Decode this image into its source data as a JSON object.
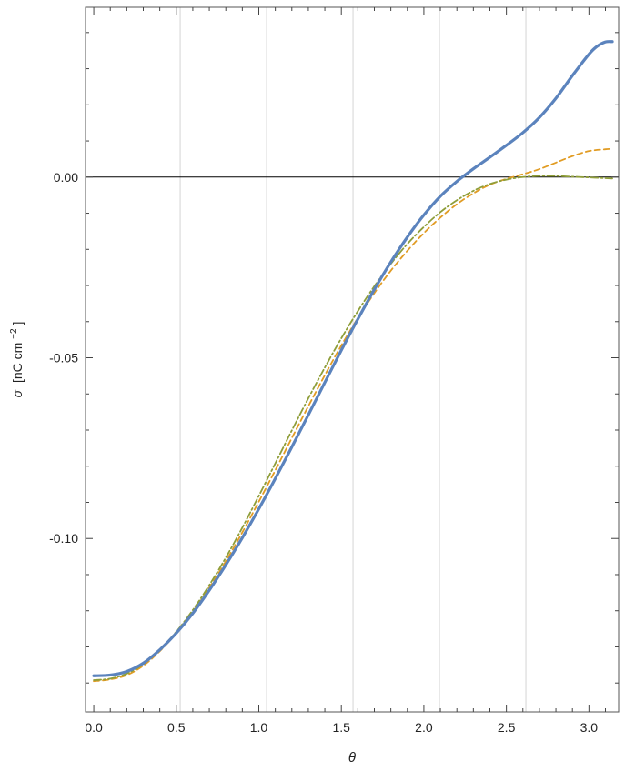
{
  "chart_data": {
    "type": "line",
    "title": "",
    "xlabel": "θ",
    "ylabel": "σ [nC cm⁻²]",
    "ylabel_symbol": "σ",
    "ylabel_unit": "[nC cm",
    "ylabel_exponent": "−2",
    "ylabel_unit_close": "]",
    "xlim": [
      -0.05,
      3.18
    ],
    "ylim": [
      -0.148,
      0.047
    ],
    "x_ticks": [
      0.0,
      0.5,
      1.0,
      1.5,
      2.0,
      2.5,
      3.0
    ],
    "x_tick_labels": [
      "0.0",
      "0.5",
      "1.0",
      "1.5",
      "2.0",
      "2.5",
      "3.0"
    ],
    "y_ticks": [
      0.0,
      -0.05,
      -0.1
    ],
    "y_tick_labels": [
      "0.00",
      "-0.05",
      "-0.10"
    ],
    "vertical_gridlines": [
      0.5236,
      1.0472,
      1.5708,
      2.0944,
      2.618
    ],
    "zero_line": true,
    "legend": "none",
    "series": [
      {
        "style": "solid",
        "color": "#5b83bd",
        "x": [
          0.0,
          0.1,
          0.2,
          0.3,
          0.4,
          0.5,
          0.6,
          0.7,
          0.8,
          0.9,
          1.0,
          1.1,
          1.2,
          1.3,
          1.4,
          1.5,
          1.6,
          1.7,
          1.8,
          1.9,
          2.0,
          2.1,
          2.2,
          2.3,
          2.4,
          2.5,
          2.6,
          2.7,
          2.8,
          2.9,
          3.0,
          3.05,
          3.1,
          3.1416
        ],
        "values": [
          -0.138,
          -0.1378,
          -0.1368,
          -0.1345,
          -0.1308,
          -0.1262,
          -0.1207,
          -0.1143,
          -0.1073,
          -0.0998,
          -0.0918,
          -0.0834,
          -0.0747,
          -0.0658,
          -0.0568,
          -0.0479,
          -0.0393,
          -0.0311,
          -0.0235,
          -0.0166,
          -0.0105,
          -0.0053,
          -0.0012,
          0.0023,
          0.0055,
          0.0088,
          0.0123,
          0.0165,
          0.0218,
          0.0281,
          0.034,
          0.0362,
          0.0374,
          0.0375
        ]
      },
      {
        "style": "dashed",
        "color": "#e19c24",
        "x": [
          0.0,
          0.1,
          0.2,
          0.3,
          0.4,
          0.5,
          0.6,
          0.7,
          0.8,
          0.9,
          1.0,
          1.1,
          1.2,
          1.3,
          1.4,
          1.5,
          1.6,
          1.7,
          1.8,
          1.9,
          2.0,
          2.1,
          2.2,
          2.3,
          2.4,
          2.5,
          2.6,
          2.7,
          2.8,
          2.9,
          3.0,
          3.1,
          3.1416
        ],
        "values": [
          -0.1395,
          -0.139,
          -0.1378,
          -0.1352,
          -0.1312,
          -0.1262,
          -0.1203,
          -0.1136,
          -0.1063,
          -0.0983,
          -0.0898,
          -0.0811,
          -0.0722,
          -0.0634,
          -0.0548,
          -0.0466,
          -0.039,
          -0.0321,
          -0.0259,
          -0.0204,
          -0.0155,
          -0.0112,
          -0.0075,
          -0.0045,
          -0.0021,
          -0.0005,
          0.0008,
          0.0022,
          0.004,
          0.0058,
          0.0072,
          0.0077,
          0.0078
        ]
      },
      {
        "style": "dashdot",
        "color": "#8f9e3a",
        "x": [
          0.0,
          0.1,
          0.2,
          0.3,
          0.4,
          0.5,
          0.6,
          0.7,
          0.8,
          0.9,
          1.0,
          1.1,
          1.2,
          1.3,
          1.4,
          1.5,
          1.6,
          1.7,
          1.8,
          1.9,
          2.0,
          2.1,
          2.2,
          2.3,
          2.4,
          2.5,
          2.6,
          2.7,
          2.8,
          2.9,
          3.0,
          3.1,
          3.1416
        ],
        "values": [
          -0.1392,
          -0.1388,
          -0.1374,
          -0.1348,
          -0.1308,
          -0.1258,
          -0.1198,
          -0.1129,
          -0.1053,
          -0.097,
          -0.0882,
          -0.0792,
          -0.0701,
          -0.0612,
          -0.0527,
          -0.0446,
          -0.0371,
          -0.0302,
          -0.024,
          -0.0185,
          -0.0138,
          -0.0097,
          -0.0064,
          -0.0038,
          -0.0019,
          -0.0007,
          0.0,
          0.0003,
          0.0003,
          0.0001,
          -0.0001,
          -0.0003,
          -0.0004
        ]
      }
    ]
  }
}
